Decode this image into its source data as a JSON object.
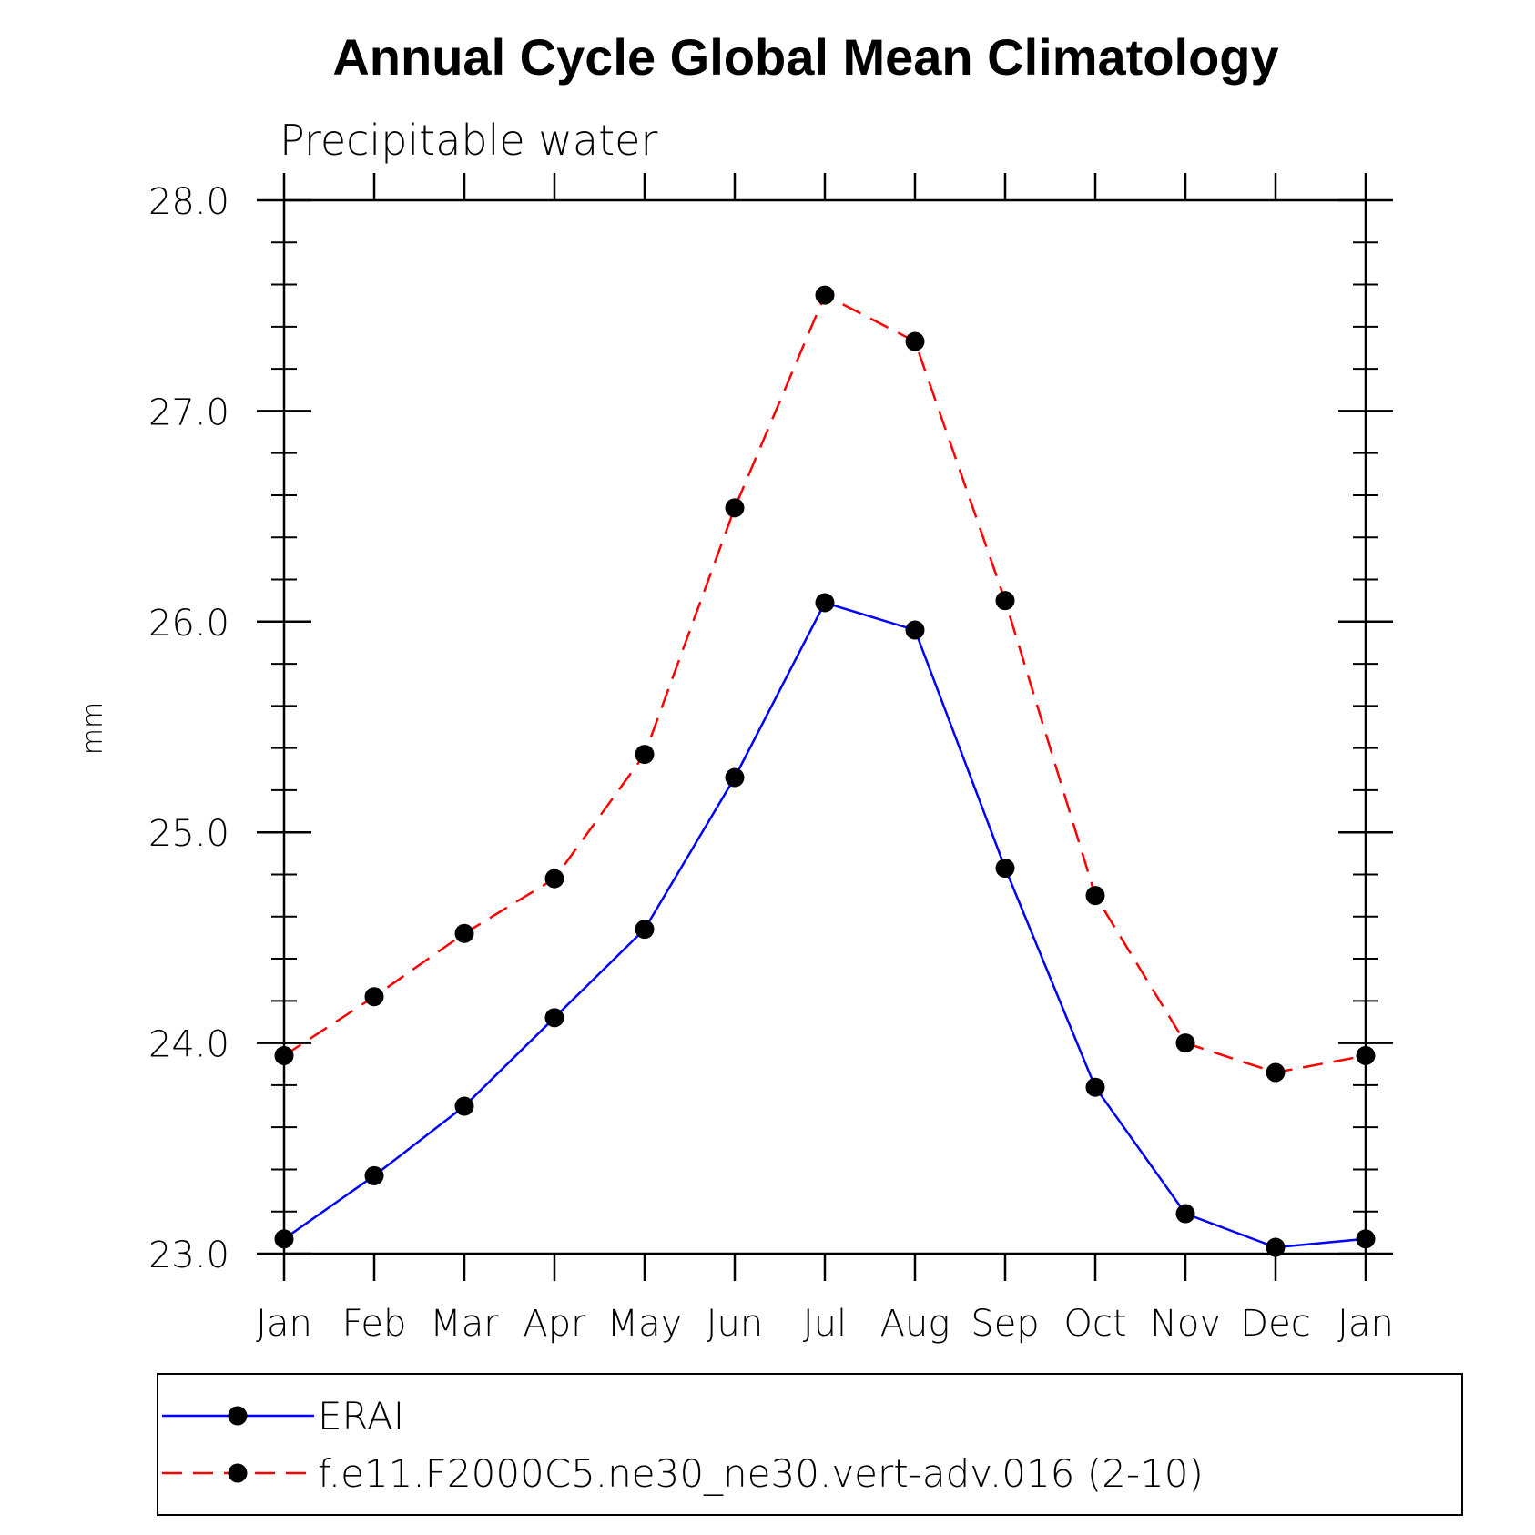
{
  "chart_data": {
    "type": "line",
    "title": "Annual Cycle Global Mean Climatology",
    "subtitle": "Precipitable water",
    "xlabel": "",
    "ylabel": "mm",
    "categories": [
      "Jan",
      "Feb",
      "Mar",
      "Apr",
      "May",
      "Jun",
      "Jul",
      "Aug",
      "Sep",
      "Oct",
      "Nov",
      "Dec",
      "Jan"
    ],
    "ylim": [
      23.0,
      28.0
    ],
    "yticks": [
      "23.0",
      "24.0",
      "25.0",
      "26.0",
      "27.0",
      "28.0"
    ],
    "ytick_values": [
      23.0,
      24.0,
      25.0,
      26.0,
      27.0,
      28.0
    ],
    "yminor_step": 0.2,
    "grid": false,
    "legend_position": "bottom",
    "series": [
      {
        "name": "ERAI",
        "color": "#0000ff",
        "dash": "solid",
        "marker": "filled-circle",
        "values": [
          23.07,
          23.37,
          23.7,
          24.12,
          24.54,
          25.26,
          26.09,
          25.96,
          24.83,
          23.79,
          23.19,
          23.03,
          23.07
        ]
      },
      {
        "name": "f.e11.F2000C5.ne30_ne30.vert-adv.016 (2-10)",
        "color": "#ff0000",
        "dash": "dashed",
        "marker": "filled-circle",
        "values": [
          23.94,
          24.22,
          24.52,
          24.78,
          25.37,
          26.54,
          27.55,
          27.33,
          26.1,
          24.7,
          24.0,
          23.86,
          23.94
        ]
      }
    ]
  }
}
